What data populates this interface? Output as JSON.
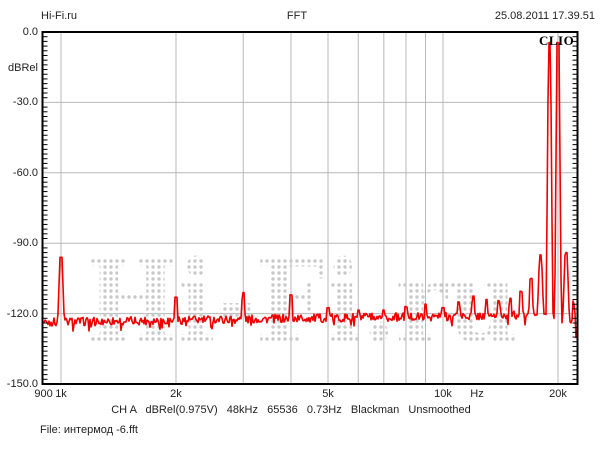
{
  "header": {
    "site": "Hi-Fi.ru",
    "title": "FFT",
    "timestamp": "25.08.2011 17.39.51"
  },
  "plot": {
    "brand": "CLIO",
    "watermark": "Hi-Fi.ru",
    "ylabel": "dBRel"
  },
  "footer": {
    "status": "CH A   dBRel(0.975V)   48kHz   65536   0.73Hz   Blackman   Unsmoothed",
    "file": "File: интермод -6.fft"
  },
  "colors": {
    "trace": "#f00000",
    "grid": "#b8b8b8",
    "border": "#000000",
    "watermark_dots": "#c9c9c9",
    "text": "#222222"
  },
  "chart_data": {
    "type": "line",
    "title": "FFT",
    "xlabel": "Hz",
    "ylabel": "dBRel",
    "x_scale": "log",
    "xlim": [
      900,
      22300
    ],
    "ylim": [
      -150,
      0
    ],
    "grid": true,
    "x_gridlines": [
      1000,
      2000,
      3000,
      4000,
      5000,
      6000,
      7000,
      8000,
      9000,
      10000,
      20000
    ],
    "y_gridlines": [
      -30,
      -60,
      -90,
      -120
    ],
    "x_ticks": [
      {
        "label": "900",
        "f": 900
      },
      {
        "label": "1k",
        "f": 1000
      },
      {
        "label": "2k",
        "f": 2000
      },
      {
        "label": "5k",
        "f": 5000
      },
      {
        "label": "10k",
        "f": 10000
      },
      {
        "label": "Hz",
        "x": 477
      },
      {
        "label": "20k",
        "f": 20000
      }
    ],
    "y_ticks": [
      {
        "label": "0.0",
        "db": 0
      },
      {
        "label": "-30.0",
        "db": -30
      },
      {
        "label": "-60.0",
        "db": -60
      },
      {
        "label": "-90.0",
        "db": -90
      },
      {
        "label": "-120.0",
        "db": -120
      },
      {
        "label": "-150.0",
        "db": -150
      }
    ],
    "y_minor_tick_step_db": 2,
    "noise_floor_db": {
      "at_1k": -123.5,
      "slope_per_decade": 2.3,
      "fuzz_db": 1.8
    },
    "tones": [
      {
        "f": 19000,
        "db": -4.5
      },
      {
        "f": 20000,
        "db": -4.5
      }
    ],
    "spurs": [
      [
        1000,
        -96
      ],
      [
        2000,
        -113
      ],
      [
        3000,
        -111
      ],
      [
        4000,
        -112
      ],
      [
        5000,
        -117.5
      ],
      [
        6000,
        -118.5
      ],
      [
        7000,
        -118.5
      ],
      [
        8000,
        -117
      ],
      [
        9000,
        -116
      ],
      [
        10000,
        -117.5
      ],
      [
        11000,
        -115
      ],
      [
        12000,
        -112.5
      ],
      [
        13000,
        -114
      ],
      [
        14000,
        -114.5
      ],
      [
        15000,
        -113.5
      ],
      [
        16000,
        -110.5
      ],
      [
        17000,
        -105
      ],
      [
        18000,
        -95
      ],
      [
        21000,
        -94
      ],
      [
        22000,
        -108
      ]
    ],
    "rolloff": {
      "start_hz": 21300,
      "end_hz": 22300,
      "drop_db": 11
    }
  }
}
